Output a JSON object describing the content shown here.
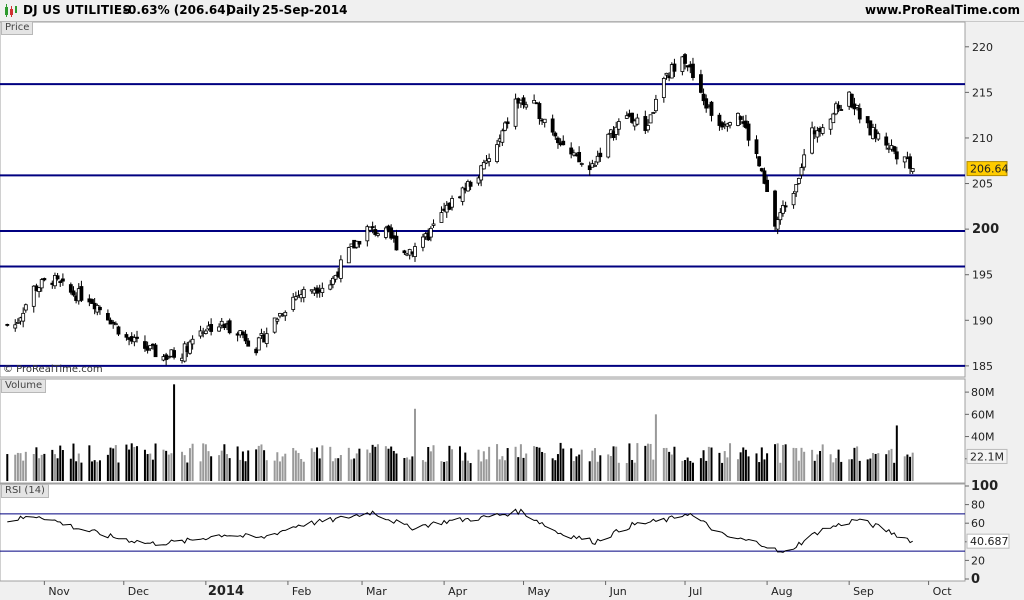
{
  "header": {
    "symbol": "DJ US UTILITIES",
    "change": "-0.63% (206.64)",
    "period": "Daily",
    "date": "25-Sep-2014",
    "site": "www.ProRealTime.com"
  },
  "panels": {
    "price_label": "Price",
    "volume_label": "Volume",
    "rsi_label": "RSI (14)",
    "copyright": "© ProRealTime.com"
  },
  "colors": {
    "background": "#ffffff",
    "support_lines": "#000080",
    "candles": "#000000",
    "volume_up": "#999999",
    "volume_down": "#000000",
    "rsi_line": "#000000",
    "last_price_badge": "#ffcc00"
  },
  "chart_data": [
    {
      "type": "candlestick",
      "panel": "price",
      "title": "DJ US UTILITIES",
      "ylim": [
        184,
        222.5
      ],
      "y_ticks": [
        "185",
        "190",
        "195",
        "200",
        "205",
        "210",
        "215",
        "220"
      ],
      "x_ticks": [
        "Nov",
        "Dec",
        "2014",
        "Feb",
        "Mar",
        "Apr",
        "May",
        "Jun",
        "Jul",
        "Aug",
        "Sep",
        "Oct"
      ],
      "x_range": [
        "2013-10-16",
        "2014-10-14"
      ],
      "last_value": "206.64",
      "horizontal_lines": [
        185,
        195.9,
        199.8,
        205.9,
        215.9
      ],
      "close_path": [
        [
          "2013-10-21",
          189.5
        ],
        [
          "2013-10-28",
          193.5
        ],
        [
          "2013-11-04",
          194.5
        ],
        [
          "2013-11-11",
          193.0
        ],
        [
          "2013-11-18",
          192.5
        ],
        [
          "2013-11-25",
          190.5
        ],
        [
          "2013-12-02",
          188.0
        ],
        [
          "2013-12-09",
          187.0
        ],
        [
          "2013-12-16",
          186.0
        ],
        [
          "2013-12-23",
          186.5
        ],
        [
          "2013-12-30",
          189.0
        ],
        [
          "2014-01-06",
          189.5
        ],
        [
          "2014-01-13",
          189.0
        ],
        [
          "2014-01-20",
          187.0
        ],
        [
          "2014-01-27",
          190.0
        ],
        [
          "2014-02-03",
          192.5
        ],
        [
          "2014-02-10",
          193.5
        ],
        [
          "2014-02-17",
          194.0
        ],
        [
          "2014-02-24",
          197.5
        ],
        [
          "2014-03-03",
          200.0
        ],
        [
          "2014-03-10",
          199.5
        ],
        [
          "2014-03-17",
          197.5
        ],
        [
          "2014-03-24",
          198.5
        ],
        [
          "2014-03-31",
          201.5
        ],
        [
          "2014-04-07",
          204.0
        ],
        [
          "2014-04-14",
          206.0
        ],
        [
          "2014-04-21",
          209.0
        ],
        [
          "2014-04-28",
          214.0
        ],
        [
          "2014-05-05",
          213.5
        ],
        [
          "2014-05-12",
          211.0
        ],
        [
          "2014-05-19",
          208.0
        ],
        [
          "2014-05-26",
          206.5
        ],
        [
          "2014-06-02",
          210.0
        ],
        [
          "2014-06-09",
          212.5
        ],
        [
          "2014-06-16",
          211.0
        ],
        [
          "2014-06-23",
          216.0
        ],
        [
          "2014-06-30",
          219.5
        ],
        [
          "2014-07-07",
          214.5
        ],
        [
          "2014-07-14",
          211.5
        ],
        [
          "2014-07-21",
          213.0
        ],
        [
          "2014-07-28",
          208.0
        ],
        [
          "2014-08-04",
          200.5
        ],
        [
          "2014-08-11",
          204.5
        ],
        [
          "2014-08-18",
          210.5
        ],
        [
          "2014-08-25",
          212.5
        ],
        [
          "2014-09-01",
          214.5
        ],
        [
          "2014-09-08",
          211.0
        ],
        [
          "2014-09-15",
          209.5
        ],
        [
          "2014-09-22",
          207.5
        ],
        [
          "2014-09-25",
          206.64
        ]
      ]
    },
    {
      "type": "bar",
      "panel": "volume",
      "title": "Volume",
      "ylim": [
        0,
        90
      ],
      "y_ticks": [
        "80M",
        "60M",
        "40M",
        "20M"
      ],
      "last_value": "22.1M",
      "unit": "M",
      "typical_value": 23,
      "spikes": [
        {
          "date": "2013-12-20",
          "value": 87
        },
        {
          "date": "2014-03-21",
          "value": 65
        },
        {
          "date": "2014-06-20",
          "value": 60
        },
        {
          "date": "2014-09-19",
          "value": 50
        }
      ]
    },
    {
      "type": "line",
      "panel": "rsi",
      "title": "RSI (14)",
      "ylim": [
        0,
        100
      ],
      "y_ticks": [
        "100",
        "80",
        "60",
        "40",
        "20",
        "0"
      ],
      "levels": [
        30,
        70
      ],
      "last_value": "40.687",
      "path": [
        [
          "2013-10-16",
          62
        ],
        [
          "2013-10-30",
          68
        ],
        [
          "2013-11-13",
          55
        ],
        [
          "2013-11-27",
          45
        ],
        [
          "2013-12-11",
          38
        ],
        [
          "2013-12-23",
          40
        ],
        [
          "2014-01-08",
          48
        ],
        [
          "2014-01-22",
          44
        ],
        [
          "2014-02-05",
          58
        ],
        [
          "2014-02-19",
          64
        ],
        [
          "2014-03-05",
          72
        ],
        [
          "2014-03-19",
          55
        ],
        [
          "2014-04-02",
          62
        ],
        [
          "2014-04-16",
          66
        ],
        [
          "2014-04-30",
          73
        ],
        [
          "2014-05-14",
          50
        ],
        [
          "2014-05-28",
          40
        ],
        [
          "2014-06-11",
          58
        ],
        [
          "2014-06-25",
          64
        ],
        [
          "2014-07-02",
          71
        ],
        [
          "2014-07-16",
          46
        ],
        [
          "2014-07-30",
          38
        ],
        [
          "2014-08-07",
          27
        ],
        [
          "2014-08-21",
          52
        ],
        [
          "2014-09-04",
          64
        ],
        [
          "2014-09-12",
          56
        ],
        [
          "2014-09-25",
          40.687
        ]
      ]
    }
  ]
}
